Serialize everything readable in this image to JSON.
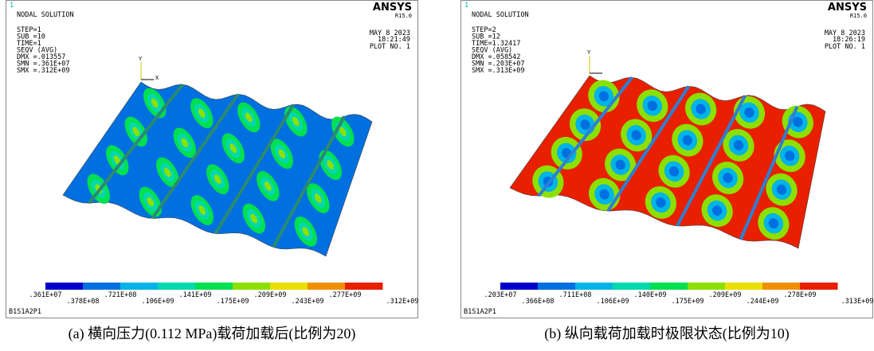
{
  "panels": [
    {
      "index": "1",
      "title": "NODAL SOLUTION",
      "brand": "ANSYS",
      "version": "R15.0",
      "info": [
        "STEP=1",
        "SUB =10",
        "TIME=1",
        "SEQV    (AVG)",
        "DMX =.013557",
        "SMN =.361E+07",
        "SMX =.312E+09"
      ],
      "date": "MAY  8 2023",
      "time": "18:21:49",
      "plot": "PLOT NO.   1",
      "triad": [
        "Y",
        "X"
      ],
      "legend": [
        ".361E+07",
        ".378E+08",
        ".721E+08",
        ".106E+09",
        ".141E+09",
        ".175E+09",
        ".209E+09",
        ".243E+09",
        ".277E+09",
        ".312E+09"
      ],
      "footer": "B1S1A2P1",
      "caption": "(a) 横向压力(0.112 MPa)载荷加载后(比例为20)"
    },
    {
      "index": "1",
      "title": "NODAL SOLUTION",
      "brand": "ANSYS",
      "version": "R15.0",
      "info": [
        "STEP=2",
        "SUB =12",
        "TIME=1.32417",
        "SEQV    (AVG)",
        "DMX =.058542",
        "SMN =.203E+07",
        "SMX =.313E+09"
      ],
      "date": "MAY  8 2023",
      "time": "18:26:19",
      "plot": "PLOT NO.   1",
      "triad": [
        "Y"
      ],
      "legend": [
        ".203E+07",
        ".366E+08",
        ".711E+08",
        ".106E+09",
        ".140E+09",
        ".175E+09",
        ".209E+09",
        ".244E+09",
        ".278E+09",
        ".313E+09"
      ],
      "footer": "B1S1A2P1",
      "caption": "(b) 纵向载荷加载时极限状态(比例为10)"
    }
  ],
  "legend_colors": [
    "#0000c8",
    "#0070e0",
    "#00b4e8",
    "#00d8b0",
    "#00e050",
    "#8ce000",
    "#e8e000",
    "#f09000",
    "#e82000"
  ]
}
